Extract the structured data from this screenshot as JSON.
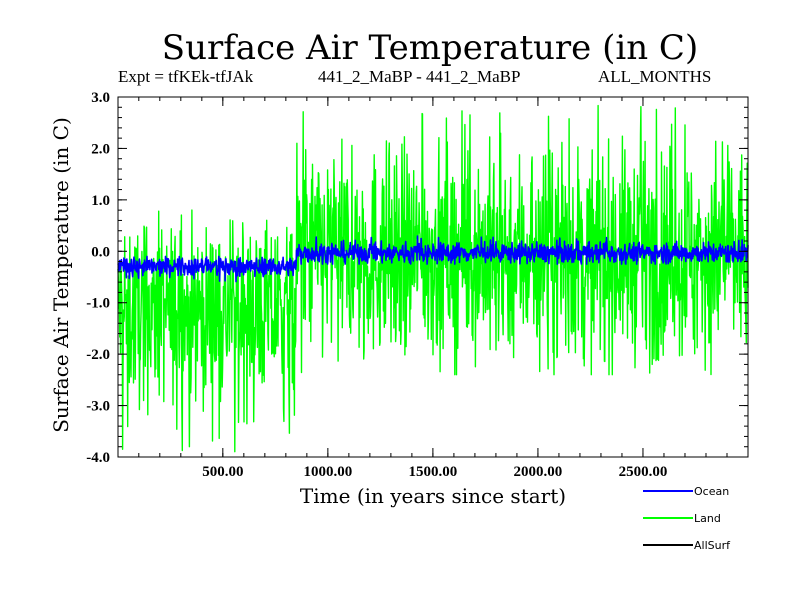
{
  "header": {
    "title": "Surface Air Temperature (in C)",
    "expt": "Expt = tfKEk-tfJAk",
    "period": "441_2_MaBP - 441_2_MaBP",
    "months": "ALL_MONTHS"
  },
  "chart_data": {
    "type": "line",
    "title": "Surface Air Temperature (in C)",
    "xlabel": "Time (in years since start)",
    "ylabel": "Surface Air Temperature (in C)",
    "xlim": [
      1,
      3000
    ],
    "ylim": [
      -4.0,
      3.0
    ],
    "x_ticks": [
      500,
      1000,
      1500,
      2000,
      2500
    ],
    "x_tick_labels": [
      "500.00",
      "1000.00",
      "1500.00",
      "2000.00",
      "2500.00"
    ],
    "y_ticks": [
      3.0,
      2.0,
      1.0,
      0.0,
      -1.0,
      -2.0,
      -3.0,
      -4.0
    ],
    "y_tick_labels": [
      "3.0",
      "2.0",
      "1.0",
      "0.0",
      "-1.0",
      "-2.0",
      "-3.0",
      "-4.0"
    ],
    "legend_position": "bottom-right, outside plot",
    "series": [
      {
        "name": "Land",
        "color": "#00ff00",
        "note": "noisy annual series",
        "segments": [
          {
            "x_range": [
              1,
              850
            ],
            "mean": -1.2,
            "min": -4.0,
            "max": 0.8
          },
          {
            "x_range": [
              850,
              3000
            ],
            "mean": -0.05,
            "min": -2.4,
            "max": 2.9
          }
        ]
      },
      {
        "name": "Ocean",
        "color": "#0000ff",
        "segments": [
          {
            "x_range": [
              1,
              850
            ],
            "mean": -0.3,
            "min": -0.6,
            "max": -0.1
          },
          {
            "x_range": [
              850,
              3000
            ],
            "mean": -0.03,
            "min": -0.25,
            "max": 0.3
          }
        ]
      },
      {
        "name": "AllSurf",
        "color": "#000000",
        "note": "not visible in plot (hidden beneath Ocean trace)"
      }
    ]
  }
}
